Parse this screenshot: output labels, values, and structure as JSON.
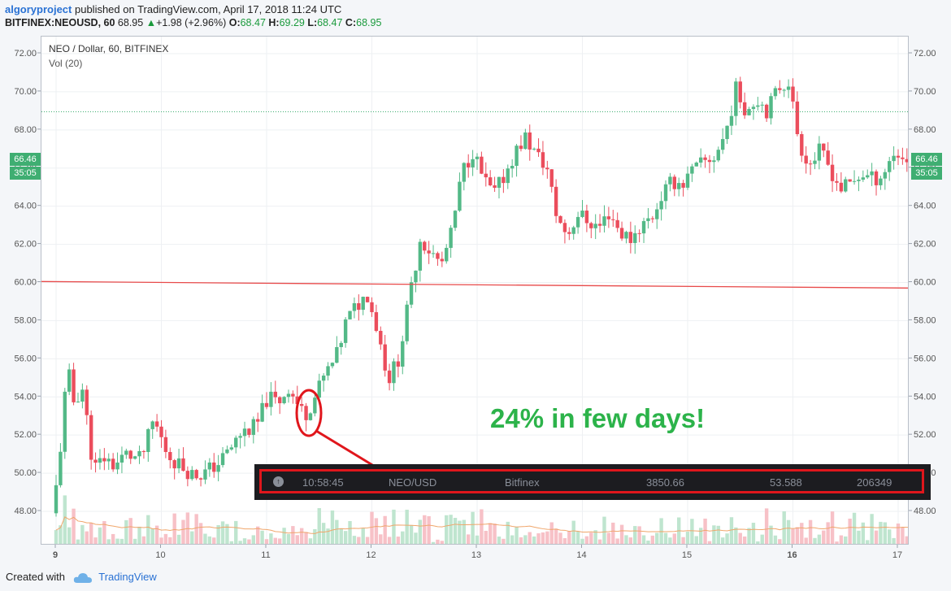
{
  "header": {
    "author": "algoryproject",
    "published": "published on TradingView.com, April 17, 2018 11:24 UTC",
    "symbol": "BITFINEX:NEOUSD, 60",
    "last": "68.95",
    "change_arrow": "▲",
    "change": "+1.98 (+2.96%)",
    "o_label": "O:",
    "o_value": "68.47",
    "h_label": "H:",
    "h_value": "69.29",
    "l_label": "L:",
    "l_value": "68.47",
    "c_label": "C:",
    "c_value": "68.95"
  },
  "legend": {
    "title": "NEO / Dollar, 60, BITFINEX",
    "volume": "Vol (20)"
  },
  "price_badge": {
    "price": "66.46",
    "countdown": "35:05"
  },
  "annotation": "24% in few days!",
  "ticker": {
    "icon": "arrow-up-circle-icon",
    "time": "10:58:45",
    "pair": "NEO/USD",
    "exchange": "Bitfinex",
    "value1": "3850.66",
    "value2": "53.588",
    "value3": "206349"
  },
  "footer": {
    "created_with": "Created with",
    "brand": "TradingView"
  },
  "colors": {
    "up": "#53b987",
    "down": "#eb4d5c",
    "vol_up": "#bfe5cf",
    "vol_down": "#f7c1c7",
    "trend_line": "#e84a4a",
    "annotation": "#2cb34a",
    "highlight": "#e0161c"
  },
  "chart_data": {
    "type": "candlestick",
    "title": "NEO / Dollar, 60, BITFINEX",
    "x_ticks": [
      "9",
      "10",
      "11",
      "12",
      "13",
      "14",
      "15",
      "16",
      "17"
    ],
    "y_ticks": [
      "48.00",
      "50.00",
      "52.00",
      "54.00",
      "56.00",
      "58.00",
      "60.00",
      "62.00",
      "64.00",
      "66.00",
      "68.00",
      "70.00",
      "72.00"
    ],
    "ylim": [
      46.5,
      73
    ],
    "grid": true,
    "last_close": 66.46,
    "dotted_level": 68.95,
    "trend_line": {
      "start": [
        9.0,
        60.05
      ],
      "end": [
        17.15,
        59.7
      ]
    },
    "price_path": [
      [
        9.0,
        47.9
      ],
      [
        9.05,
        49.5
      ],
      [
        9.1,
        52.3
      ],
      [
        9.15,
        55.7
      ],
      [
        9.2,
        53.7
      ],
      [
        9.3,
        54.5
      ],
      [
        9.35,
        52.0
      ],
      [
        9.4,
        50.2
      ],
      [
        9.5,
        50.8
      ],
      [
        9.6,
        50.4
      ],
      [
        9.7,
        51.0
      ],
      [
        9.85,
        50.7
      ],
      [
        9.97,
        52.8
      ],
      [
        10.1,
        51.0
      ],
      [
        10.2,
        50.5
      ],
      [
        10.35,
        49.9
      ],
      [
        10.45,
        50.0
      ],
      [
        10.6,
        50.6
      ],
      [
        10.7,
        51.3
      ],
      [
        10.8,
        52.1
      ],
      [
        10.95,
        52.5
      ],
      [
        11.05,
        54.0
      ],
      [
        11.15,
        53.7
      ],
      [
        11.25,
        54.5
      ],
      [
        11.35,
        53.5
      ],
      [
        11.4,
        53.0
      ],
      [
        11.5,
        54.0
      ],
      [
        11.6,
        55.2
      ],
      [
        11.7,
        56.0
      ],
      [
        11.8,
        58.0
      ],
      [
        11.9,
        58.8
      ],
      [
        12.0,
        59.4
      ],
      [
        12.1,
        57.4
      ],
      [
        12.2,
        54.9
      ],
      [
        12.3,
        56.1
      ],
      [
        12.4,
        59.2
      ],
      [
        12.5,
        62.3
      ],
      [
        12.6,
        61.6
      ],
      [
        12.7,
        60.9
      ],
      [
        12.8,
        62.6
      ],
      [
        12.9,
        65.8
      ],
      [
        13.0,
        66.9
      ],
      [
        13.1,
        65.4
      ],
      [
        13.2,
        64.6
      ],
      [
        13.3,
        65.6
      ],
      [
        13.4,
        66.8
      ],
      [
        13.5,
        67.6
      ],
      [
        13.6,
        66.7
      ],
      [
        13.7,
        66.1
      ],
      [
        13.8,
        63.4
      ],
      [
        13.9,
        62.5
      ],
      [
        14.0,
        63.6
      ],
      [
        14.1,
        63.2
      ],
      [
        14.2,
        62.9
      ],
      [
        14.3,
        63.7
      ],
      [
        14.4,
        62.6
      ],
      [
        14.5,
        62.3
      ],
      [
        14.6,
        63.0
      ],
      [
        14.7,
        63.4
      ],
      [
        14.8,
        64.6
      ],
      [
        14.9,
        65.3
      ],
      [
        15.0,
        65.2
      ],
      [
        15.1,
        65.9
      ],
      [
        15.2,
        66.3
      ],
      [
        15.3,
        66.6
      ],
      [
        15.4,
        67.8
      ],
      [
        15.5,
        70.1
      ],
      [
        15.6,
        69.0
      ],
      [
        15.7,
        69.7
      ],
      [
        15.8,
        69.0
      ],
      [
        15.9,
        70.2
      ],
      [
        16.0,
        70.6
      ],
      [
        16.1,
        67.3
      ],
      [
        16.2,
        66.2
      ],
      [
        16.3,
        66.9
      ],
      [
        16.4,
        65.9
      ],
      [
        16.5,
        64.9
      ],
      [
        16.6,
        65.2
      ],
      [
        16.7,
        65.7
      ],
      [
        16.8,
        65.4
      ],
      [
        16.9,
        65.7
      ],
      [
        17.0,
        66.8
      ],
      [
        17.1,
        66.5
      ],
      [
        17.15,
        66.46
      ]
    ]
  }
}
